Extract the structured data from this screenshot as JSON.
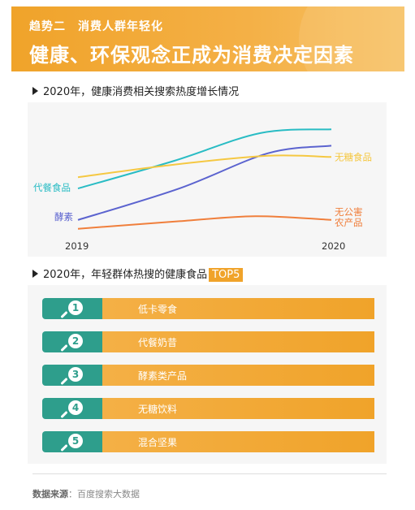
{
  "header": {
    "subtitle": "趋势二　消费人群年轻化",
    "title": "健康、环保观念正成为消费决定因素"
  },
  "section1": {
    "heading": "2020年，健康消费相关搜索热度增长情况"
  },
  "chart_data": {
    "type": "line",
    "x": [
      "2019",
      "2020"
    ],
    "series": [
      {
        "name": "代餐食品",
        "color": "#29bcc4",
        "points": [
          [
            0,
            0.38
          ],
          [
            0.38,
            0.6
          ],
          [
            0.72,
            0.82
          ],
          [
            1,
            0.85
          ]
        ]
      },
      {
        "name": "酵素",
        "color": "#5b63cf",
        "points": [
          [
            0,
            0.13
          ],
          [
            0.4,
            0.38
          ],
          [
            0.75,
            0.66
          ],
          [
            1,
            0.72
          ]
        ]
      },
      {
        "name": "无糖食品",
        "color": "#f5c842",
        "points": [
          [
            0,
            0.47
          ],
          [
            0.38,
            0.57
          ],
          [
            0.75,
            0.64
          ],
          [
            1,
            0.63
          ]
        ]
      },
      {
        "name": "无公害农产品",
        "name_lines": [
          "无公害",
          "农产品"
        ],
        "color": "#f07f3c",
        "points": [
          [
            0,
            0.06
          ],
          [
            0.4,
            0.12
          ],
          [
            0.7,
            0.16
          ],
          [
            1,
            0.13
          ]
        ]
      }
    ],
    "grid": false,
    "legend": "inline"
  },
  "section2": {
    "heading": "2020年，年轻群体热搜的健康食品",
    "badge": "TOP5",
    "items": [
      {
        "rank": "1",
        "label": "低卡零食"
      },
      {
        "rank": "2",
        "label": "代餐奶昔"
      },
      {
        "rank": "3",
        "label": "酵素类产品"
      },
      {
        "rank": "4",
        "label": "无糖饮料"
      },
      {
        "rank": "5",
        "label": "混合坚果"
      }
    ]
  },
  "footer": {
    "source_label": "数据来源",
    "source_sep": "：",
    "source_value": "百度搜索大数据"
  },
  "colors": {
    "accent": "#f0a32a",
    "teal": "#2e9e8c"
  }
}
